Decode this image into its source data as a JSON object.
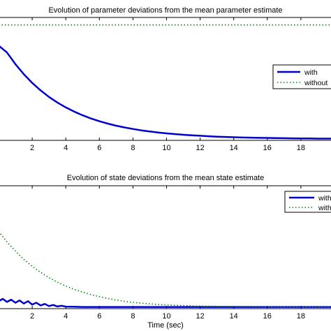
{
  "chart_data": [
    {
      "type": "line",
      "title": "Evolution of parameter deviations from the mean parameter estimate",
      "xlabel": "",
      "ylabel": "",
      "xlim": [
        0,
        20
      ],
      "xticks": [
        2,
        4,
        6,
        8,
        10,
        12,
        14,
        16,
        18
      ],
      "grid": false,
      "legend_position": "right",
      "series": [
        {
          "name": "with",
          "color": "#0000cc",
          "style": "solid",
          "x": [
            0,
            0.5,
            1,
            1.5,
            2,
            2.5,
            3,
            3.5,
            4,
            4.5,
            5,
            5.5,
            6,
            6.5,
            7,
            7.5,
            8,
            8.5,
            9,
            9.5,
            10,
            10.5,
            11,
            11.5,
            12,
            12.5,
            13,
            13.5,
            14,
            14.5,
            15,
            15.5,
            16,
            16.5,
            17,
            17.5,
            18,
            18.5,
            19,
            19.5,
            20
          ],
          "y": [
            1.0,
            0.925,
            0.8,
            0.693,
            0.6,
            0.52,
            0.45,
            0.39,
            0.338,
            0.293,
            0.253,
            0.219,
            0.19,
            0.164,
            0.142,
            0.123,
            0.107,
            0.092,
            0.08,
            0.069,
            0.06,
            0.052,
            0.045,
            0.039,
            0.034,
            0.029,
            0.025,
            0.022,
            0.019,
            0.016,
            0.014,
            0.012,
            0.011,
            0.009,
            0.008,
            0.007,
            0.006,
            0.005,
            0.004,
            0.004,
            0.003
          ]
        },
        {
          "name": "without",
          "color": "#008800",
          "style": "dotted",
          "x": [
            0,
            20
          ],
          "y": [
            1.22,
            1.22
          ]
        }
      ]
    },
    {
      "type": "line",
      "title": "Evolution of state deviations from the mean state estimate",
      "xlabel": "Time (sec)",
      "ylabel": "",
      "xlim": [
        0,
        20
      ],
      "xticks": [
        2,
        4,
        6,
        8,
        10,
        12,
        14,
        16,
        18
      ],
      "grid": false,
      "legend_position": "top-right",
      "series": [
        {
          "name": "with",
          "color": "#0000cc",
          "style": "solid",
          "x": [
            0,
            0.25,
            0.5,
            0.75,
            1,
            1.25,
            1.5,
            1.75,
            2,
            2.25,
            2.5,
            2.75,
            3,
            3.25,
            3.5,
            3.75,
            4,
            4.5,
            5,
            6,
            8,
            10,
            12,
            14,
            16,
            18,
            20
          ],
          "y": [
            0.04,
            0.055,
            0.035,
            0.05,
            0.03,
            0.045,
            0.025,
            0.04,
            0.018,
            0.03,
            0.012,
            0.022,
            0.008,
            0.015,
            0.005,
            0.01,
            0.004,
            0.003,
            0.002,
            0.002,
            0.002,
            0.002,
            0.002,
            0.002,
            0.002,
            0.002,
            0.002
          ]
        },
        {
          "name": "without",
          "color": "#008800",
          "style": "dotted",
          "x": [
            0,
            0.5,
            1,
            1.5,
            2,
            2.5,
            3,
            3.5,
            4,
            4.5,
            5,
            5.5,
            6,
            6.5,
            7,
            7.5,
            8,
            9,
            10,
            11,
            12,
            14,
            16,
            18,
            20
          ],
          "y": [
            0.5,
            0.43,
            0.37,
            0.315,
            0.27,
            0.23,
            0.195,
            0.165,
            0.14,
            0.118,
            0.1,
            0.083,
            0.07,
            0.058,
            0.048,
            0.039,
            0.032,
            0.022,
            0.015,
            0.011,
            0.008,
            0.005,
            0.003,
            0.002,
            0.002
          ]
        }
      ]
    }
  ]
}
